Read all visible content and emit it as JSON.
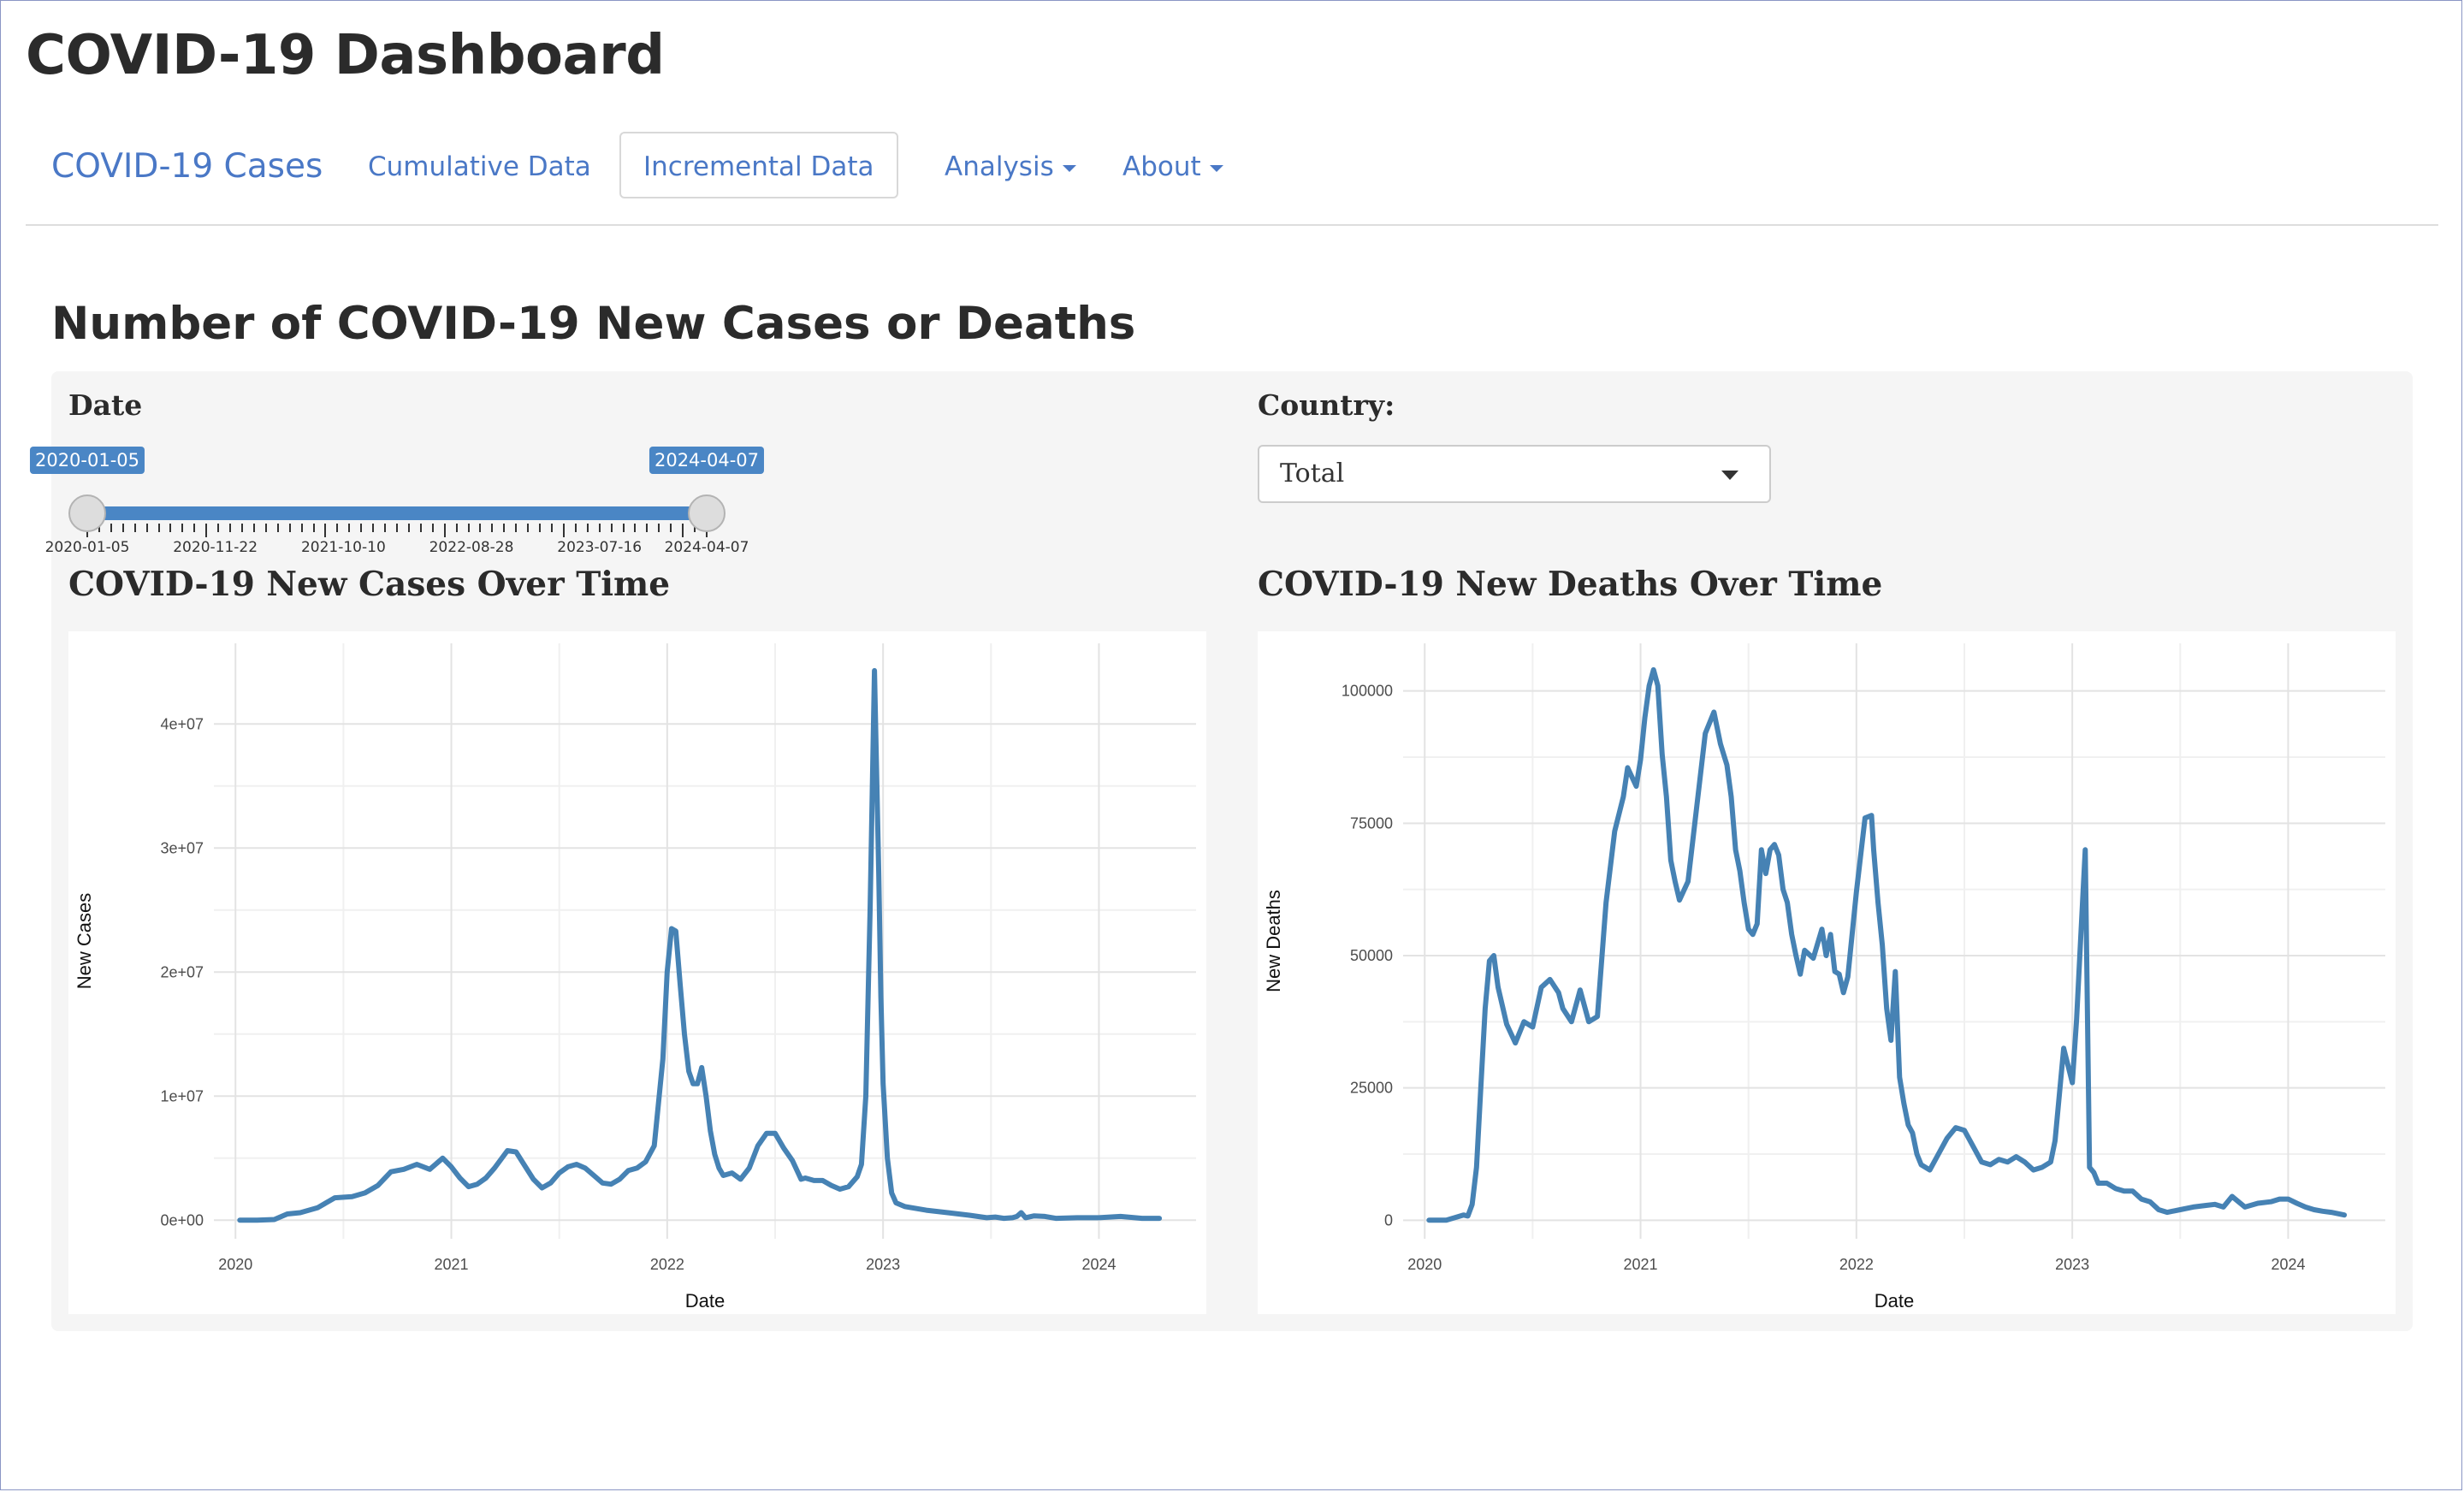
{
  "app_title": "COVID-19 Dashboard",
  "navbar": {
    "brand": "COVID-19 Cases",
    "items": [
      {
        "label": "Cumulative Data",
        "active": false,
        "dropdown": false
      },
      {
        "label": "Incremental Data",
        "active": true,
        "dropdown": false
      },
      {
        "label": "Analysis",
        "active": false,
        "dropdown": true
      },
      {
        "label": "About",
        "active": false,
        "dropdown": true
      }
    ]
  },
  "page_title": "Number of COVID-19 New Cases or Deaths",
  "date_filter": {
    "label": "Date",
    "min": "2020-01-05",
    "max": "2024-04-07",
    "from": "2020-01-05",
    "to": "2024-04-07",
    "tick_labels": [
      "2020-01-05",
      "2020-11-22",
      "2021-10-10",
      "2022-08-28",
      "2023-07-16",
      "2024-04-07"
    ]
  },
  "country_filter": {
    "label": "Country:",
    "selected": "Total"
  },
  "colors": {
    "accent": "#4a78c6",
    "line": "#4682b4",
    "panel": "#f5f5f5"
  },
  "chart_data": [
    {
      "type": "line",
      "title": "COVID-19 New Cases Over Time",
      "xlabel": "Date",
      "ylabel": "New Cases",
      "xlim": [
        2019.9,
        2024.45
      ],
      "ylim": [
        -1500000,
        46500000
      ],
      "x_ticks": [
        2020,
        2021,
        2022,
        2023,
        2024
      ],
      "x_tick_labels": [
        "2020",
        "2021",
        "2022",
        "2023",
        "2024"
      ],
      "y_ticks": [
        0,
        10000000,
        20000000,
        30000000,
        40000000
      ],
      "y_tick_labels": [
        "0e+00",
        "1e+07",
        "2e+07",
        "3e+07",
        "4e+07"
      ],
      "grid": true,
      "series": [
        {
          "x": [
            2020.02,
            2020.1,
            2020.18,
            2020.24,
            2020.3,
            2020.38,
            2020.46,
            2020.54,
            2020.6,
            2020.66,
            2020.72,
            2020.78,
            2020.84,
            2020.9,
            2020.96,
            2021.0,
            2021.04,
            2021.08,
            2021.12,
            2021.16,
            2021.2,
            2021.26,
            2021.3,
            2021.34,
            2021.38,
            2021.42,
            2021.46,
            2021.5,
            2021.54,
            2021.58,
            2021.62,
            2021.66,
            2021.7,
            2021.74,
            2021.78,
            2021.82,
            2021.86,
            2021.9,
            2021.94,
            2021.98,
            2022.0,
            2022.02,
            2022.04,
            2022.06,
            2022.08,
            2022.1,
            2022.12,
            2022.14,
            2022.16,
            2022.18,
            2022.2,
            2022.22,
            2022.24,
            2022.26,
            2022.3,
            2022.34,
            2022.38,
            2022.42,
            2022.46,
            2022.5,
            2022.54,
            2022.58,
            2022.62,
            2022.64,
            2022.68,
            2022.72,
            2022.76,
            2022.8,
            2022.84,
            2022.88,
            2022.9,
            2022.92,
            2022.94,
            2022.96,
            2022.98,
            2022.99,
            2023.0,
            2023.02,
            2023.04,
            2023.06,
            2023.1,
            2023.2,
            2023.3,
            2023.4,
            2023.48,
            2023.52,
            2023.56,
            2023.6,
            2023.62,
            2023.64,
            2023.66,
            2023.7,
            2023.75,
            2023.8,
            2023.9,
            2024.0,
            2024.1,
            2024.2,
            2024.28
          ],
          "y": [
            0,
            0,
            50000,
            500000,
            600000,
            1000000,
            1800000,
            1900000,
            2200000,
            2800000,
            3900000,
            4100000,
            4500000,
            4100000,
            5000000,
            4300000,
            3400000,
            2700000,
            2900000,
            3400000,
            4200000,
            5600000,
            5500000,
            4400000,
            3300000,
            2600000,
            3000000,
            3800000,
            4300000,
            4500000,
            4200000,
            3600000,
            3000000,
            2900000,
            3300000,
            4000000,
            4200000,
            4700000,
            6000000,
            13000000,
            20000000,
            23500000,
            23300000,
            19000000,
            15000000,
            12000000,
            11000000,
            11000000,
            12300000,
            10000000,
            7200000,
            5300000,
            4200000,
            3600000,
            3800000,
            3300000,
            4200000,
            6000000,
            7000000,
            7000000,
            5800000,
            4800000,
            3300000,
            3400000,
            3200000,
            3200000,
            2800000,
            2500000,
            2700000,
            3500000,
            4500000,
            10000000,
            25000000,
            44300000,
            28000000,
            18000000,
            11000000,
            5000000,
            2200000,
            1400000,
            1100000,
            800000,
            600000,
            400000,
            200000,
            250000,
            150000,
            200000,
            300000,
            600000,
            200000,
            350000,
            300000,
            150000,
            200000,
            200000,
            300000,
            150000,
            150000
          ]
        }
      ]
    },
    {
      "type": "line",
      "title": "COVID-19 New Deaths Over Time",
      "xlabel": "Date",
      "ylabel": "New Deaths",
      "xlim": [
        2019.9,
        2024.45
      ],
      "ylim": [
        -3500,
        109000
      ],
      "x_ticks": [
        2020,
        2021,
        2022,
        2023,
        2024
      ],
      "x_tick_labels": [
        "2020",
        "2021",
        "2022",
        "2023",
        "2024"
      ],
      "y_ticks": [
        0,
        25000,
        50000,
        75000,
        100000
      ],
      "y_tick_labels": [
        "0",
        "25000",
        "50000",
        "75000",
        "100000"
      ],
      "grid": true,
      "series": [
        {
          "x": [
            2020.02,
            2020.1,
            2020.14,
            2020.18,
            2020.2,
            2020.22,
            2020.24,
            2020.26,
            2020.28,
            2020.3,
            2020.32,
            2020.34,
            2020.38,
            2020.42,
            2020.46,
            2020.5,
            2020.54,
            2020.58,
            2020.62,
            2020.64,
            2020.68,
            2020.72,
            2020.76,
            2020.8,
            2020.84,
            2020.88,
            2020.92,
            2020.94,
            2020.98,
            2021.0,
            2021.02,
            2021.04,
            2021.06,
            2021.08,
            2021.1,
            2021.12,
            2021.14,
            2021.16,
            2021.18,
            2021.22,
            2021.26,
            2021.3,
            2021.34,
            2021.37,
            2021.4,
            2021.42,
            2021.44,
            2021.46,
            2021.48,
            2021.5,
            2021.52,
            2021.54,
            2021.56,
            2021.58,
            2021.6,
            2021.62,
            2021.64,
            2021.66,
            2021.68,
            2021.7,
            2021.72,
            2021.74,
            2021.76,
            2021.8,
            2021.84,
            2021.86,
            2021.88,
            2021.9,
            2021.92,
            2021.94,
            2021.96,
            2022.0,
            2022.04,
            2022.07,
            2022.08,
            2022.1,
            2022.12,
            2022.14,
            2022.16,
            2022.18,
            2022.2,
            2022.22,
            2022.24,
            2022.26,
            2022.28,
            2022.3,
            2022.34,
            2022.38,
            2022.42,
            2022.46,
            2022.5,
            2022.54,
            2022.58,
            2022.62,
            2022.66,
            2022.7,
            2022.74,
            2022.78,
            2022.82,
            2022.86,
            2022.9,
            2022.92,
            2022.96,
            2023.0,
            2023.02,
            2023.04,
            2023.06,
            2023.08,
            2023.1,
            2023.12,
            2023.16,
            2023.2,
            2023.24,
            2023.28,
            2023.32,
            2023.36,
            2023.4,
            2023.44,
            2023.5,
            2023.56,
            2023.62,
            2023.66,
            2023.7,
            2023.74,
            2023.8,
            2023.86,
            2023.92,
            2023.96,
            2024.0,
            2024.04,
            2024.08,
            2024.12,
            2024.16,
            2024.2,
            2024.26
          ],
          "y": [
            0,
            0,
            500,
            1000,
            800,
            3000,
            10000,
            25000,
            40000,
            49000,
            50000,
            44000,
            37000,
            33500,
            37500,
            36500,
            44000,
            45500,
            43000,
            40000,
            37500,
            43500,
            37500,
            38500,
            60000,
            73500,
            80000,
            85500,
            82000,
            87000,
            95000,
            101000,
            104000,
            101000,
            88000,
            80000,
            68000,
            64000,
            60500,
            64000,
            78000,
            92000,
            96000,
            90000,
            86000,
            80000,
            70000,
            66000,
            60000,
            55000,
            54000,
            56000,
            70000,
            65500,
            70000,
            71000,
            69000,
            62500,
            60000,
            54000,
            50000,
            46500,
            51000,
            49500,
            55000,
            50000,
            54000,
            47000,
            46500,
            43000,
            46000,
            62000,
            76000,
            76500,
            70000,
            60000,
            52000,
            40000,
            34000,
            47000,
            27000,
            22000,
            18000,
            16500,
            12500,
            10500,
            9500,
            12500,
            15500,
            17500,
            17000,
            14000,
            11000,
            10500,
            11500,
            11000,
            12000,
            11000,
            9500,
            10000,
            11000,
            15000,
            32500,
            26000,
            38000,
            54000,
            70000,
            10000,
            9000,
            7000,
            7000,
            6000,
            5500,
            5500,
            4000,
            3500,
            2000,
            1500,
            2000,
            2500,
            2800,
            3000,
            2500,
            4500,
            2500,
            3200,
            3500,
            4000,
            4000,
            3200,
            2500,
            2000,
            1700,
            1500,
            1000
          ]
        }
      ]
    }
  ]
}
